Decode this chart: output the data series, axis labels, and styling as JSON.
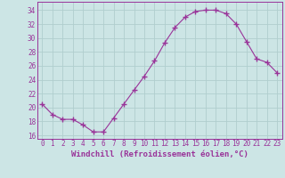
{
  "x": [
    0,
    1,
    2,
    3,
    4,
    5,
    6,
    7,
    8,
    9,
    10,
    11,
    12,
    13,
    14,
    15,
    16,
    17,
    18,
    19,
    20,
    21,
    22,
    23
  ],
  "y": [
    20.5,
    19.0,
    18.3,
    18.3,
    17.5,
    16.5,
    16.5,
    18.5,
    20.5,
    22.5,
    24.5,
    26.7,
    29.3,
    31.5,
    33.0,
    33.8,
    34.0,
    34.0,
    33.5,
    32.0,
    29.5,
    27.0,
    26.5,
    25.0
  ],
  "line_color": "#993399",
  "marker": "+",
  "marker_size": 4,
  "bg_color": "#cce5e5",
  "grid_color": "#b0cece",
  "xlabel": "Windchill (Refroidissement éolien,°C)",
  "ylabel_ticks": [
    16,
    18,
    20,
    22,
    24,
    26,
    28,
    30,
    32,
    34
  ],
  "xlim": [
    -0.5,
    23.5
  ],
  "ylim": [
    15.5,
    35.2
  ],
  "xticks": [
    0,
    1,
    2,
    3,
    4,
    5,
    6,
    7,
    8,
    9,
    10,
    11,
    12,
    13,
    14,
    15,
    16,
    17,
    18,
    19,
    20,
    21,
    22,
    23
  ],
  "tick_fontsize": 5.5,
  "xlabel_fontsize": 6.5
}
